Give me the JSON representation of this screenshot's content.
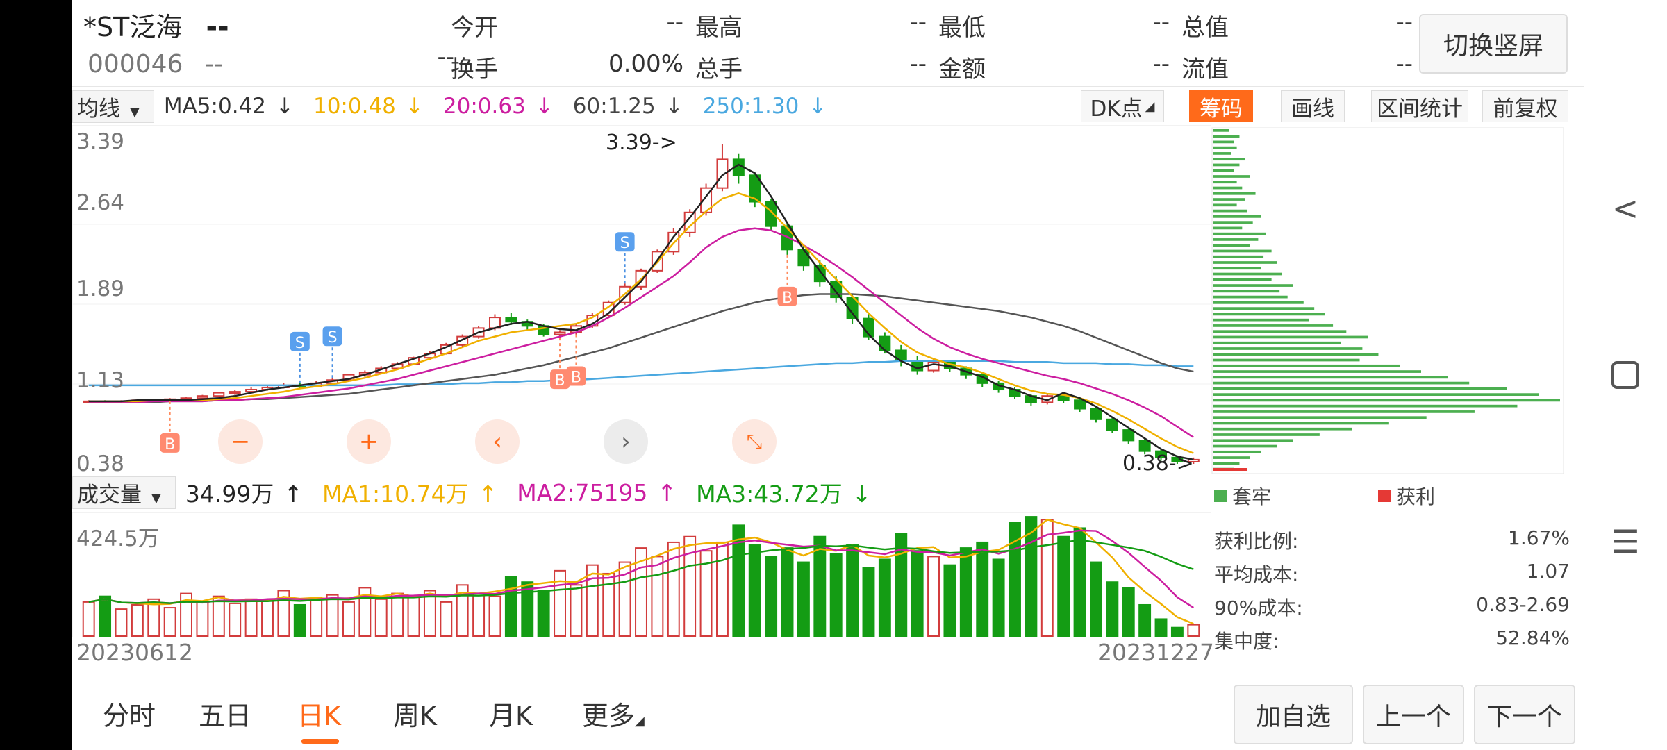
{
  "header": {
    "stock_name": "*ST泛海",
    "price": "--",
    "stock_code": "000046",
    "change": "--",
    "change_pct": "--",
    "fields": [
      {
        "label": "今开",
        "value": "--"
      },
      {
        "label": "最高",
        "value": "--"
      },
      {
        "label": "最低",
        "value": "--"
      },
      {
        "label": "总值",
        "value": "--"
      },
      {
        "label": "换手",
        "value": "0.00%"
      },
      {
        "label": "总手",
        "value": "--"
      },
      {
        "label": "金额",
        "value": "--"
      },
      {
        "label": "流值",
        "value": "--"
      }
    ],
    "switch_button": "切换竖屏"
  },
  "ma_bar": {
    "selector": "均线",
    "items": [
      {
        "text": "MA5:0.42",
        "arrow": "↓",
        "color": "#333333"
      },
      {
        "text": "10:0.48",
        "arrow": "↓",
        "color": "#f0b000"
      },
      {
        "text": "20:0.63",
        "arrow": "↓",
        "color": "#cc1ea0"
      },
      {
        "text": "60:1.25",
        "arrow": "↓",
        "color": "#444444"
      },
      {
        "text": "250:1.30",
        "arrow": "↓",
        "color": "#4aa8e0"
      }
    ]
  },
  "tools": [
    "DK点",
    "筹码",
    "画线",
    "区间统计",
    "前复权"
  ],
  "chart_data": {
    "type": "candlestick",
    "y_ticks": [
      "3.39",
      "2.64",
      "1.89",
      "1.13",
      "0.38"
    ],
    "high_label": "3.39->",
    "low_label": "0.38->",
    "ylim": [
      0.38,
      3.39
    ],
    "dates": {
      "start": "20230612",
      "end": "20231227"
    },
    "ma5": [
      0.97,
      0.97,
      0.97,
      0.98,
      0.98,
      0.98,
      0.98,
      0.99,
      1.0,
      1.02,
      1.05,
      1.08,
      1.1,
      1.12,
      1.14,
      1.16,
      1.18,
      1.22,
      1.27,
      1.32,
      1.37,
      1.42,
      1.48,
      1.55,
      1.62,
      1.66,
      1.7,
      1.72,
      1.68,
      1.65,
      1.64,
      1.7,
      1.8,
      1.95,
      2.1,
      2.3,
      2.52,
      2.7,
      2.9,
      3.1,
      3.2,
      3.12,
      2.9,
      2.65,
      2.4,
      2.2,
      2.0,
      1.8,
      1.6,
      1.45,
      1.35,
      1.28,
      1.32,
      1.3,
      1.25,
      1.2,
      1.12,
      1.08,
      1.02,
      0.98,
      1.05,
      1.0,
      0.92,
      0.82,
      0.72,
      0.62,
      0.52,
      0.45,
      0.42
    ],
    "ma10": [
      0.97,
      0.97,
      0.97,
      0.97,
      0.98,
      0.98,
      0.98,
      0.98,
      0.99,
      1.0,
      1.02,
      1.04,
      1.06,
      1.09,
      1.11,
      1.13,
      1.16,
      1.19,
      1.23,
      1.27,
      1.32,
      1.37,
      1.42,
      1.48,
      1.54,
      1.58,
      1.62,
      1.64,
      1.66,
      1.68,
      1.7,
      1.76,
      1.86,
      1.98,
      2.12,
      2.28,
      2.46,
      2.62,
      2.76,
      2.88,
      2.93,
      2.88,
      2.76,
      2.6,
      2.44,
      2.28,
      2.12,
      1.96,
      1.8,
      1.66,
      1.53,
      1.43,
      1.37,
      1.32,
      1.29,
      1.24,
      1.18,
      1.12,
      1.07,
      1.04,
      1.03,
      1.0,
      0.95,
      0.88,
      0.8,
      0.71,
      0.62,
      0.54,
      0.48
    ],
    "ma20": [
      0.96,
      0.96,
      0.96,
      0.96,
      0.97,
      0.97,
      0.97,
      0.97,
      0.98,
      0.98,
      0.99,
      1.0,
      1.01,
      1.03,
      1.05,
      1.07,
      1.09,
      1.12,
      1.15,
      1.18,
      1.22,
      1.26,
      1.3,
      1.34,
      1.38,
      1.42,
      1.46,
      1.5,
      1.54,
      1.58,
      1.62,
      1.68,
      1.76,
      1.85,
      1.95,
      2.05,
      2.15,
      2.28,
      2.42,
      2.52,
      2.58,
      2.6,
      2.58,
      2.52,
      2.44,
      2.35,
      2.25,
      2.14,
      2.02,
      1.9,
      1.78,
      1.66,
      1.56,
      1.48,
      1.42,
      1.37,
      1.33,
      1.29,
      1.25,
      1.21,
      1.18,
      1.14,
      1.09,
      1.04,
      0.98,
      0.91,
      0.83,
      0.73,
      0.63
    ],
    "ma60": [
      0.96,
      0.96,
      0.96,
      0.96,
      0.96,
      0.97,
      0.97,
      0.97,
      0.98,
      0.98,
      0.99,
      0.99,
      1.0,
      1.01,
      1.02,
      1.03,
      1.04,
      1.06,
      1.08,
      1.1,
      1.12,
      1.14,
      1.16,
      1.18,
      1.2,
      1.22,
      1.25,
      1.28,
      1.31,
      1.35,
      1.39,
      1.43,
      1.47,
      1.52,
      1.57,
      1.62,
      1.67,
      1.72,
      1.77,
      1.82,
      1.86,
      1.9,
      1.93,
      1.95,
      1.97,
      1.98,
      1.98,
      1.98,
      1.97,
      1.96,
      1.94,
      1.92,
      1.9,
      1.88,
      1.86,
      1.84,
      1.82,
      1.79,
      1.76,
      1.72,
      1.68,
      1.63,
      1.57,
      1.51,
      1.45,
      1.39,
      1.33,
      1.28,
      1.25
    ],
    "ma250": [
      1.12,
      1.12,
      1.12,
      1.12,
      1.12,
      1.12,
      1.12,
      1.12,
      1.12,
      1.12,
      1.12,
      1.12,
      1.12,
      1.12,
      1.12,
      1.12,
      1.12,
      1.12,
      1.12,
      1.13,
      1.13,
      1.13,
      1.13,
      1.14,
      1.14,
      1.15,
      1.15,
      1.16,
      1.16,
      1.17,
      1.17,
      1.18,
      1.19,
      1.2,
      1.21,
      1.22,
      1.23,
      1.24,
      1.25,
      1.26,
      1.27,
      1.28,
      1.29,
      1.3,
      1.31,
      1.32,
      1.33,
      1.33,
      1.34,
      1.34,
      1.35,
      1.35,
      1.35,
      1.35,
      1.35,
      1.35,
      1.35,
      1.34,
      1.34,
      1.34,
      1.33,
      1.33,
      1.33,
      1.32,
      1.32,
      1.31,
      1.31,
      1.3,
      1.3
    ],
    "candles": [
      [
        0.97,
        0.97,
        0.98,
        0.96
      ],
      [
        0.97,
        0.96,
        0.98,
        0.95
      ],
      [
        0.96,
        0.97,
        0.98,
        0.95
      ],
      [
        0.97,
        0.98,
        0.99,
        0.96
      ],
      [
        0.98,
        0.98,
        0.99,
        0.97
      ],
      [
        0.98,
        0.99,
        1.0,
        0.97
      ],
      [
        0.99,
        1.0,
        1.01,
        0.98
      ],
      [
        1.0,
        1.02,
        1.03,
        0.99
      ],
      [
        1.02,
        1.05,
        1.06,
        1.01
      ],
      [
        1.05,
        1.06,
        1.08,
        1.03
      ],
      [
        1.06,
        1.08,
        1.1,
        1.05
      ],
      [
        1.08,
        1.1,
        1.12,
        1.07
      ],
      [
        1.1,
        1.12,
        1.14,
        1.09
      ],
      [
        1.12,
        1.11,
        1.14,
        1.09
      ],
      [
        1.11,
        1.14,
        1.16,
        1.1
      ],
      [
        1.14,
        1.17,
        1.19,
        1.13
      ],
      [
        1.17,
        1.22,
        1.23,
        1.16
      ],
      [
        1.22,
        1.24,
        1.26,
        1.2
      ],
      [
        1.24,
        1.28,
        1.3,
        1.23
      ],
      [
        1.28,
        1.32,
        1.34,
        1.27
      ],
      [
        1.32,
        1.38,
        1.39,
        1.31
      ],
      [
        1.38,
        1.42,
        1.44,
        1.36
      ],
      [
        1.42,
        1.5,
        1.52,
        1.41
      ],
      [
        1.5,
        1.58,
        1.6,
        1.48
      ],
      [
        1.58,
        1.66,
        1.68,
        1.56
      ],
      [
        1.66,
        1.76,
        1.79,
        1.64
      ],
      [
        1.76,
        1.72,
        1.8,
        1.69
      ],
      [
        1.72,
        1.68,
        1.74,
        1.64
      ],
      [
        1.68,
        1.6,
        1.7,
        1.58
      ],
      [
        1.6,
        1.62,
        1.64,
        1.57
      ],
      [
        1.62,
        1.68,
        1.7,
        1.6
      ],
      [
        1.68,
        1.78,
        1.8,
        1.66
      ],
      [
        1.78,
        1.9,
        1.92,
        1.76
      ],
      [
        1.9,
        2.05,
        2.08,
        1.88
      ],
      [
        2.05,
        2.2,
        2.22,
        2.02
      ],
      [
        2.2,
        2.38,
        2.4,
        2.18
      ],
      [
        2.38,
        2.56,
        2.6,
        2.35
      ],
      [
        2.56,
        2.75,
        2.78,
        2.52
      ],
      [
        2.75,
        2.98,
        3.02,
        2.72
      ],
      [
        2.98,
        3.25,
        3.39,
        2.95
      ],
      [
        3.25,
        3.1,
        3.3,
        3.02
      ],
      [
        3.1,
        2.85,
        3.12,
        2.8
      ],
      [
        2.85,
        2.62,
        2.88,
        2.58
      ],
      [
        2.62,
        2.4,
        2.66,
        2.35
      ],
      [
        2.4,
        2.25,
        2.45,
        2.2
      ],
      [
        2.25,
        2.1,
        2.3,
        2.05
      ],
      [
        2.1,
        1.95,
        2.15,
        1.9
      ],
      [
        1.95,
        1.75,
        1.98,
        1.7
      ],
      [
        1.75,
        1.58,
        1.8,
        1.55
      ],
      [
        1.58,
        1.45,
        1.62,
        1.42
      ],
      [
        1.45,
        1.35,
        1.5,
        1.3
      ],
      [
        1.35,
        1.26,
        1.4,
        1.22
      ],
      [
        1.26,
        1.34,
        1.38,
        1.24
      ],
      [
        1.34,
        1.28,
        1.36,
        1.25
      ],
      [
        1.28,
        1.22,
        1.3,
        1.18
      ],
      [
        1.22,
        1.14,
        1.24,
        1.1
      ],
      [
        1.14,
        1.08,
        1.16,
        1.05
      ],
      [
        1.08,
        1.02,
        1.1,
        0.99
      ],
      [
        1.02,
        0.96,
        1.04,
        0.93
      ],
      [
        0.96,
        1.02,
        1.04,
        0.94
      ],
      [
        1.02,
        0.98,
        1.04,
        0.95
      ],
      [
        0.98,
        0.9,
        1.0,
        0.87
      ],
      [
        0.9,
        0.8,
        0.92,
        0.77
      ],
      [
        0.8,
        0.7,
        0.82,
        0.67
      ],
      [
        0.7,
        0.6,
        0.72,
        0.57
      ],
      [
        0.6,
        0.5,
        0.62,
        0.47
      ],
      [
        0.5,
        0.44,
        0.52,
        0.41
      ],
      [
        0.44,
        0.4,
        0.46,
        0.38
      ],
      [
        0.4,
        0.42,
        0.44,
        0.38
      ]
    ],
    "signals": [
      {
        "i": 5,
        "kind": "B"
      },
      {
        "i": 13,
        "kind": "S"
      },
      {
        "i": 15,
        "kind": "S"
      },
      {
        "i": 29,
        "kind": "B"
      },
      {
        "i": 30,
        "kind": "B"
      },
      {
        "i": 33,
        "kind": "S"
      },
      {
        "i": 43,
        "kind": "B"
      }
    ],
    "volume": {
      "label": "成交量",
      "current": "34.99万",
      "current_arrow": "↑",
      "ma1": "MA1:10.74万",
      "ma1_arrow": "↑",
      "ma2": "MA2:75195",
      "ma2_arrow": "↑",
      "ma3": "MA3:43.72万",
      "ma3_arrow": "↓",
      "max_label": "424.5万",
      "values": [
        120,
        140,
        95,
        110,
        130,
        100,
        150,
        120,
        140,
        115,
        130,
        125,
        160,
        110,
        135,
        145,
        120,
        170,
        130,
        150,
        140,
        160,
        120,
        180,
        150,
        140,
        210,
        190,
        160,
        230,
        180,
        250,
        220,
        260,
        310,
        280,
        330,
        350,
        300,
        330,
        390,
        320,
        280,
        310,
        260,
        350,
        290,
        320,
        240,
        270,
        360,
        300,
        280,
        250,
        310,
        330,
        270,
        400,
        420,
        410,
        350,
        380,
        260,
        190,
        170,
        110,
        60,
        30,
        40
      ]
    }
  },
  "chip": {
    "legend_trapped": "套牢",
    "legend_profit": "获利",
    "rows": [
      {
        "label": "获利比例:",
        "value": "1.67%"
      },
      {
        "label": "平均成本:",
        "value": "1.07"
      },
      {
        "label": "90%成本:",
        "value": "0.83-2.69"
      },
      {
        "label": "集中度:",
        "value": "52.84%"
      }
    ],
    "bars": [
      6,
      10,
      8,
      9,
      7,
      12,
      10,
      8,
      14,
      9,
      11,
      16,
      12,
      9,
      13,
      18,
      15,
      11,
      20,
      17,
      14,
      22,
      19,
      24,
      18,
      26,
      22,
      30,
      25,
      28,
      34,
      38,
      42,
      36,
      45,
      50,
      58,
      48,
      56,
      62,
      55,
      70,
      78,
      88,
      96,
      110,
      122,
      130,
      114,
      98,
      80,
      66,
      52,
      40,
      30,
      24,
      18,
      14,
      10,
      8
    ]
  },
  "bottom_tabs": [
    "分时",
    "五日",
    "日K",
    "周K",
    "月K",
    "更多"
  ],
  "bottom_buttons": [
    "加自选",
    "上一个",
    "下一个"
  ],
  "colors": {
    "up": "#d23c3c",
    "down": "#149c14",
    "accent": "#ff6a1a",
    "trapped": "#4caf50",
    "profit": "#e53935"
  }
}
